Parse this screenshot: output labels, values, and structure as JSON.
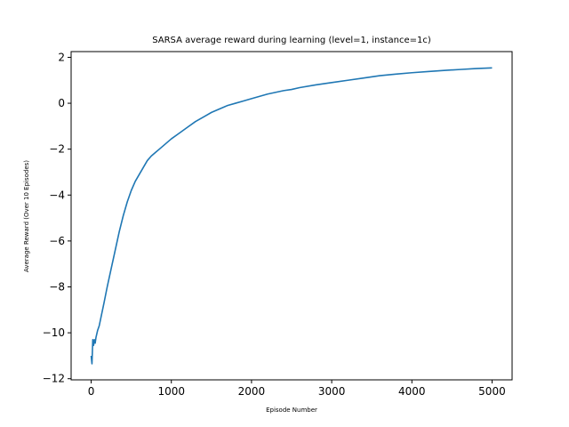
{
  "chart_data": {
    "type": "line",
    "title": "SARSA average reward during learning (level=1, instance=1c)",
    "xlabel": "Episode Number",
    "ylabel": "Average Reward (Over 10 Episodes)",
    "xlim": [
      -250,
      5250
    ],
    "ylim": [
      -12.05,
      2.25
    ],
    "xticks": [
      0,
      1000,
      2000,
      3000,
      4000,
      5000
    ],
    "xtick_labels": [
      "0",
      "1000",
      "2000",
      "3000",
      "4000",
      "5000"
    ],
    "yticks": [
      2,
      0,
      -2,
      -4,
      -6,
      -8,
      -10,
      -12
    ],
    "ytick_labels": [
      "2",
      "0",
      "−2",
      "−4",
      "−6",
      "−8",
      "−10",
      "−12"
    ],
    "grid": false,
    "legend": "none",
    "line_color": "#1f77b4",
    "series": [
      {
        "x": [
          0,
          10,
          20,
          30,
          40,
          50,
          60,
          80,
          100,
          130,
          160,
          200,
          250,
          300,
          350,
          400,
          450,
          500,
          550,
          600,
          650,
          700,
          750,
          800,
          850,
          900,
          950,
          1000,
          1100,
          1200,
          1300,
          1400,
          1500,
          1600,
          1700,
          1800,
          1900,
          2000,
          2200,
          2400,
          2500,
          2600,
          2800,
          3000,
          3200,
          3400,
          3600,
          3800,
          4000,
          4200,
          4400,
          4600,
          4800,
          5000
        ],
        "y": [
          -11.0,
          -11.35,
          -10.3,
          -10.55,
          -10.3,
          -10.45,
          -10.2,
          -9.9,
          -9.7,
          -9.2,
          -8.7,
          -8.0,
          -7.2,
          -6.4,
          -5.6,
          -4.9,
          -4.3,
          -3.8,
          -3.4,
          -3.1,
          -2.8,
          -2.5,
          -2.3,
          -2.15,
          -2.0,
          -1.85,
          -1.7,
          -1.55,
          -1.3,
          -1.05,
          -0.8,
          -0.6,
          -0.4,
          -0.25,
          -0.1,
          0.0,
          0.1,
          0.2,
          0.4,
          0.55,
          0.6,
          0.68,
          0.8,
          0.9,
          1.0,
          1.1,
          1.2,
          1.27,
          1.33,
          1.38,
          1.43,
          1.47,
          1.51,
          1.54
        ]
      }
    ]
  }
}
